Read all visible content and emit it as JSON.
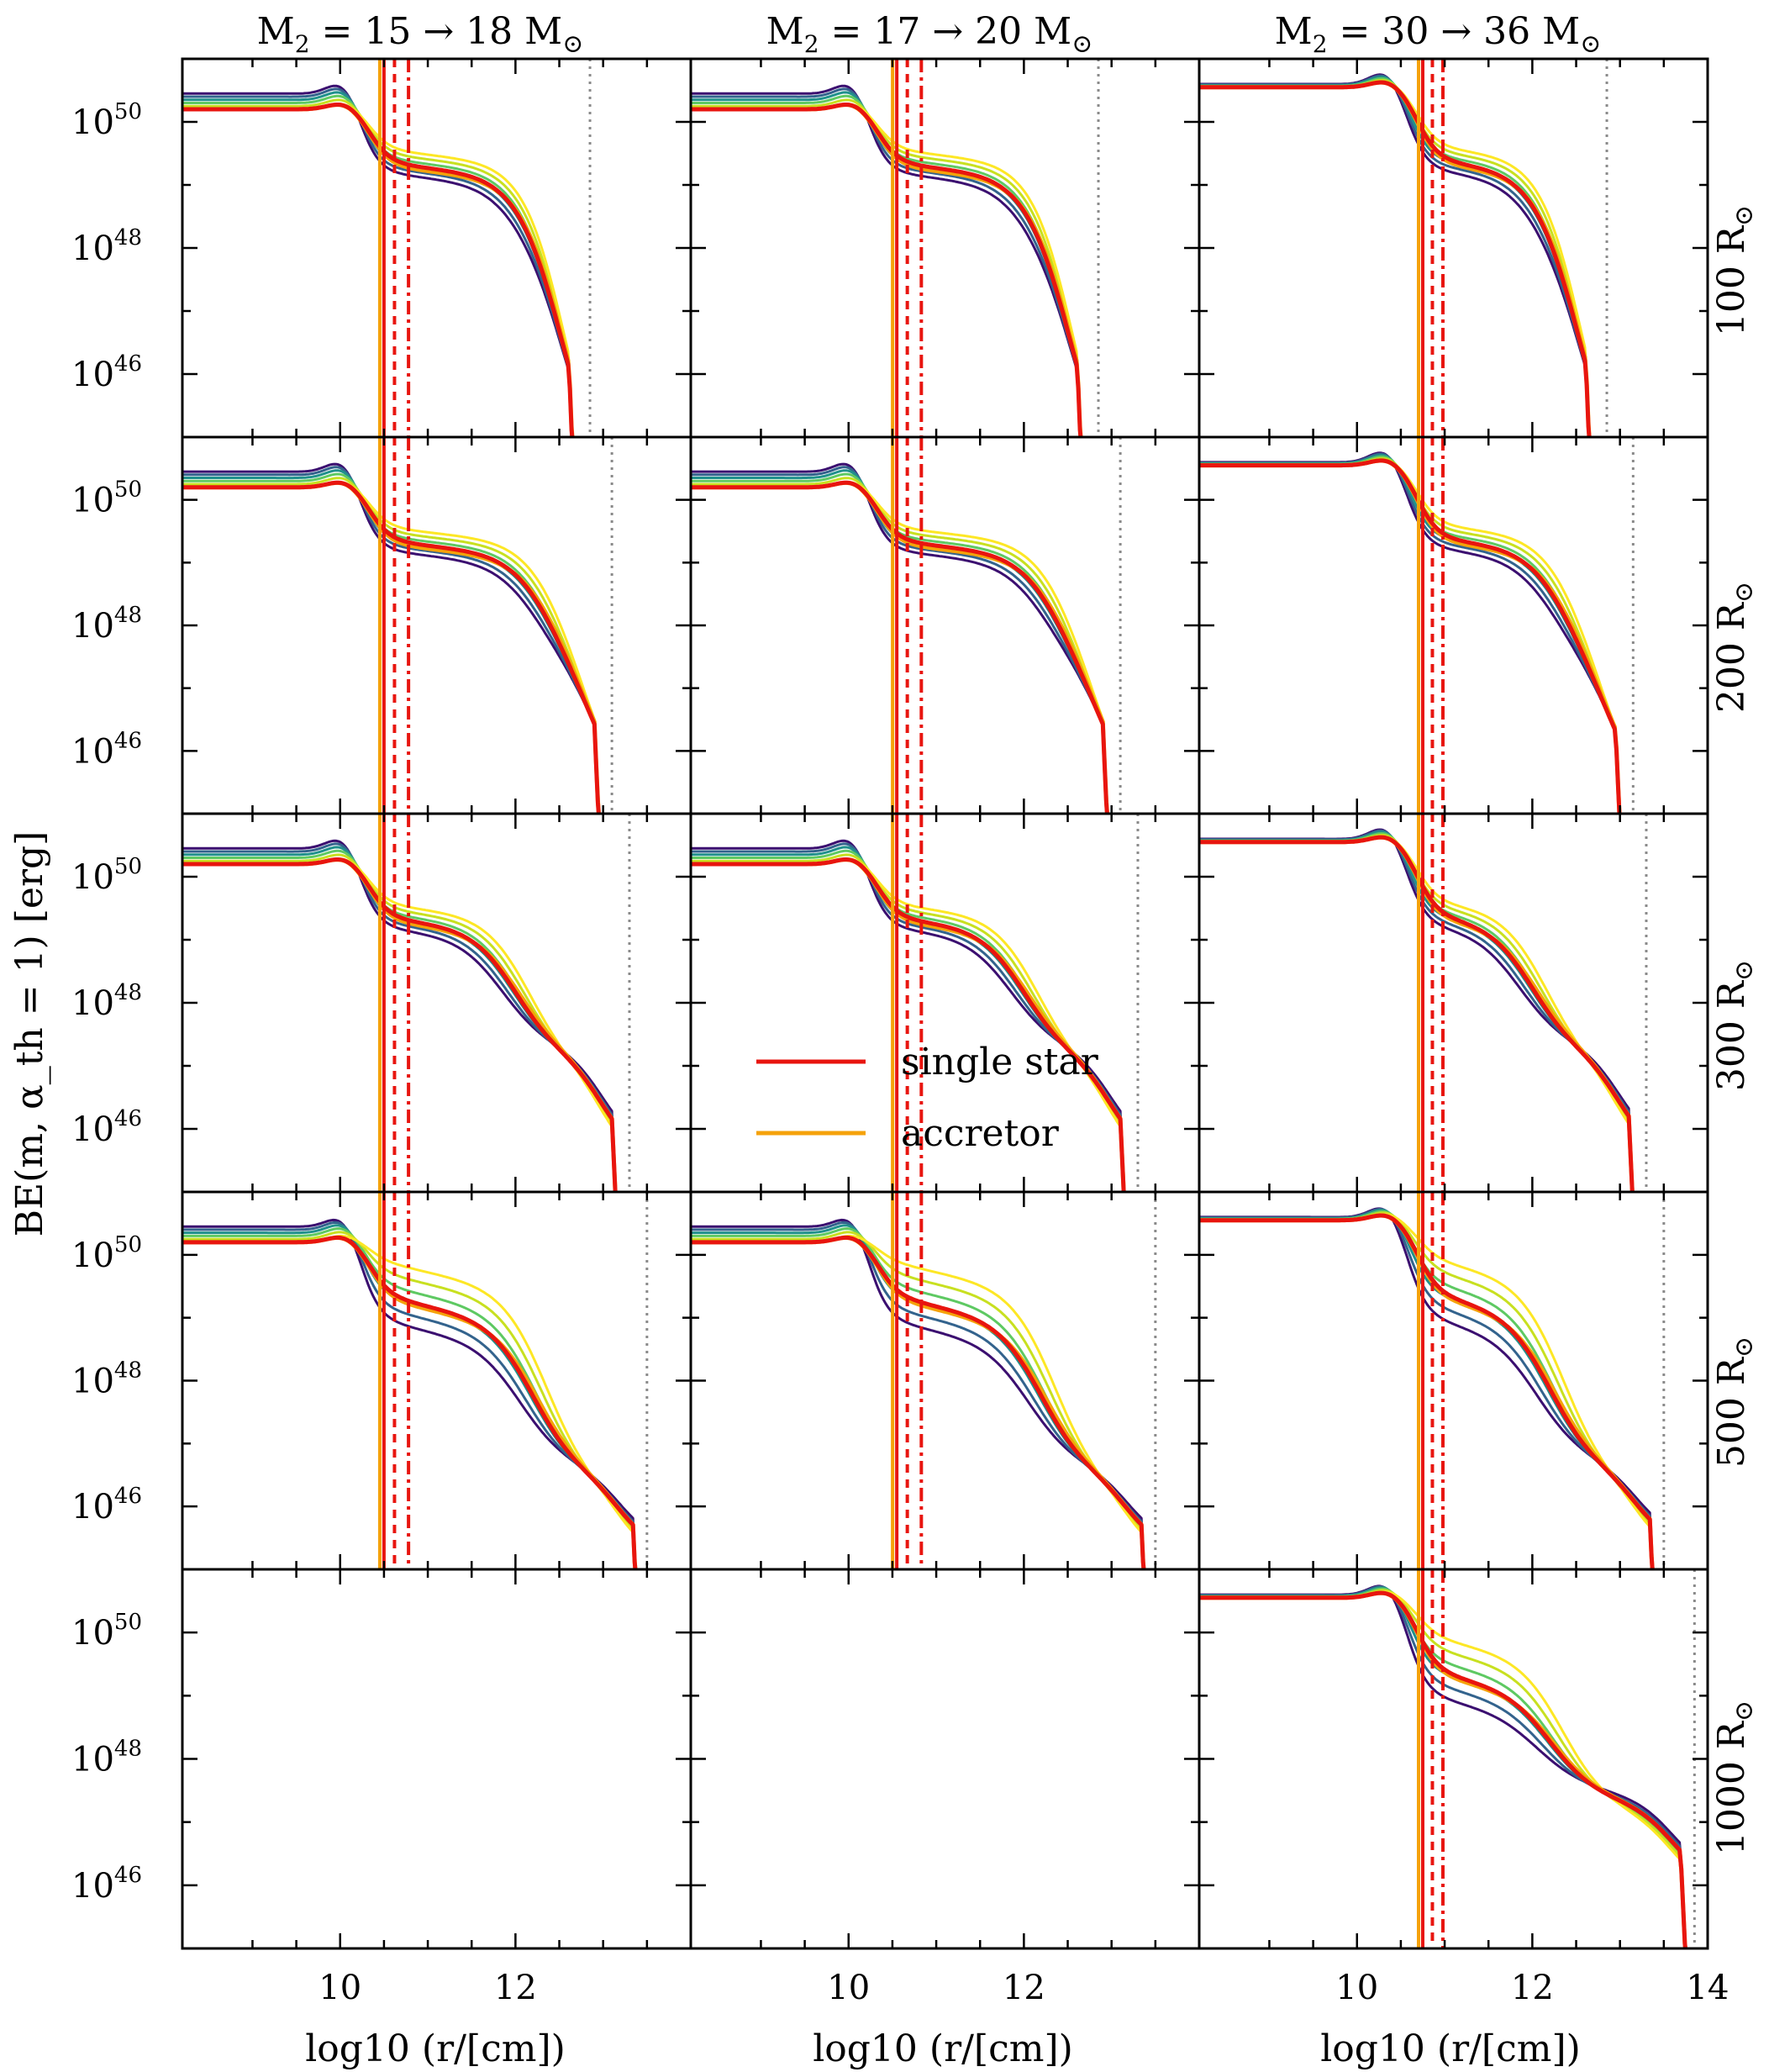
{
  "chart_data": {
    "type": "line",
    "ylabel": "BE(m, α_th = 1) [erg]",
    "xlabel": "log10 (r/[cm])",
    "xlim": [
      8.2,
      14
    ],
    "ylim_log10": [
      45,
      51
    ],
    "x_ticks": [
      10,
      12,
      14
    ],
    "y_ticks_exponent": [
      46,
      48,
      50
    ],
    "y_tick_base": "10",
    "columns": [
      {
        "title": "M2 = 15 → 18 M⊙",
        "title_parts": {
          "lhs": "M",
          "sub": "2",
          "rhs": " = 15 → 18 M",
          "sym": "⊙"
        },
        "vlines": {
          "solid": 10.5,
          "dashed": 10.62,
          "dashdot": 10.78
        }
      },
      {
        "title": "M2 = 17 → 20 M⊙",
        "title_parts": {
          "lhs": "M",
          "sub": "2",
          "rhs": " = 17 → 20 M",
          "sym": "⊙"
        },
        "vlines": {
          "solid": 10.55,
          "dashed": 10.67,
          "dashdot": 10.83
        }
      },
      {
        "title": "M2 = 30 → 36 M⊙",
        "title_parts": {
          "lhs": "M",
          "sub": "2",
          "rhs": " = 30 → 36 M",
          "sym": "⊙"
        },
        "vlines": {
          "solid": 10.75,
          "dashed": 10.86,
          "dashdot": 10.98
        }
      }
    ],
    "rows": [
      {
        "label": "100 R⊙",
        "label_parts": {
          "text": "100 R",
          "sym": "⊙"
        }
      },
      {
        "label": "200 R⊙",
        "label_parts": {
          "text": "200 R",
          "sym": "⊙"
        }
      },
      {
        "label": "300 R⊙",
        "label_parts": {
          "text": "300 R",
          "sym": "⊙"
        }
      },
      {
        "label": "500 R⊙",
        "label_parts": {
          "text": "500 R",
          "sym": "⊙"
        }
      },
      {
        "label": "1000 R⊙",
        "label_parts": {
          "text": "1000 R",
          "sym": "⊙"
        }
      }
    ],
    "surface_log_r": [
      [
        12.85,
        12.85,
        12.85
      ],
      [
        13.1,
        13.1,
        13.15
      ],
      [
        13.3,
        13.3,
        13.3
      ],
      [
        13.5,
        13.5,
        13.5
      ],
      [
        null,
        null,
        13.85
      ]
    ],
    "empty_panels": [
      [
        4,
        0
      ],
      [
        4,
        1
      ]
    ],
    "series": [
      {
        "name": "single star",
        "color": "#e8150f"
      },
      {
        "name": "accretor",
        "color": "#f5a20a"
      }
    ],
    "grid_models_colormap": [
      "#3b0f70",
      "#33638d",
      "#21918c",
      "#5ec962",
      "#c8e020",
      "#fde725"
    ],
    "legend_location": "panel row 5 column 2"
  },
  "colors": {
    "single": "#e8150f",
    "accretor": "#f5a20a",
    "surface_line": "#8a8a8a"
  }
}
